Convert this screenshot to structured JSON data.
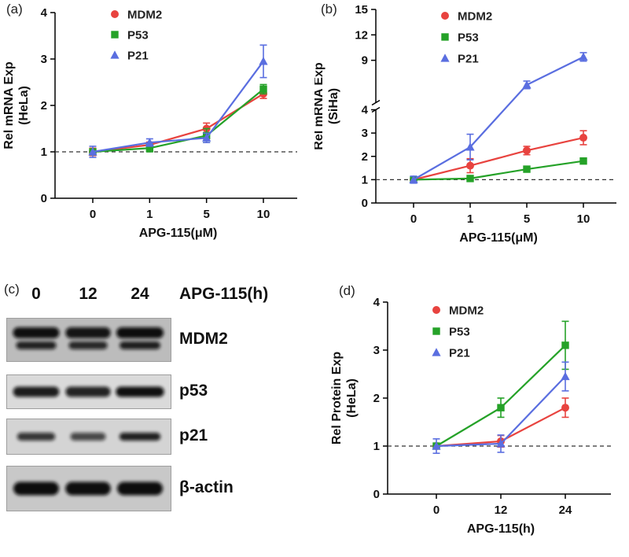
{
  "panels": {
    "a": {
      "label": "(a)"
    },
    "b": {
      "label": "(b)"
    },
    "c": {
      "label": "(c)"
    },
    "d": {
      "label": "(d)"
    }
  },
  "chart_data": [
    {
      "id": "chart-a",
      "type": "line",
      "ylabel": [
        "Rel mRNA Exp",
        "(HeLa)"
      ],
      "xlabel": "APG-115(μM)",
      "categories": [
        "0",
        "1",
        "5",
        "10"
      ],
      "ylim": [
        0,
        4
      ],
      "yticks": [
        0,
        1,
        2,
        3,
        4
      ],
      "refline": 1,
      "legend_position": "top-left",
      "series": [
        {
          "name": "MDM2",
          "marker": "circle",
          "color": "#e8433f",
          "values": [
            1.0,
            1.15,
            1.5,
            2.25
          ],
          "errors": [
            0.08,
            0.06,
            0.12,
            0.1
          ]
        },
        {
          "name": "P53",
          "marker": "square",
          "color": "#25a228",
          "values": [
            1.0,
            1.08,
            1.35,
            2.35
          ],
          "errors": [
            0.06,
            0.08,
            0.15,
            0.1
          ]
        },
        {
          "name": "P21",
          "marker": "triangle",
          "color": "#5a6ee0",
          "values": [
            1.0,
            1.2,
            1.3,
            2.95
          ],
          "errors": [
            0.12,
            0.08,
            0.1,
            0.35
          ]
        }
      ]
    },
    {
      "id": "chart-b",
      "type": "line",
      "ylabel": [
        "Rel mRNA Exp",
        "(SiHa)"
      ],
      "xlabel": "APG-115(μM)",
      "categories": [
        "0",
        "1",
        "5",
        "10"
      ],
      "ylim": [
        0,
        15
      ],
      "axis_break": {
        "value": 4,
        "ymax": 15,
        "lower_ticks": [
          0,
          1,
          2,
          3,
          4
        ],
        "upper_ticks": [
          9,
          12,
          15
        ]
      },
      "refline": 1,
      "legend_position": "top-left",
      "series": [
        {
          "name": "MDM2",
          "marker": "circle",
          "color": "#e8433f",
          "values": [
            1.0,
            1.6,
            2.25,
            2.8
          ],
          "errors": [
            0.12,
            0.3,
            0.18,
            0.3
          ]
        },
        {
          "name": "P53",
          "marker": "square",
          "color": "#25a228",
          "values": [
            1.0,
            1.05,
            1.45,
            1.8
          ],
          "errors": [
            0.08,
            0.12,
            0.12,
            0.12
          ]
        },
        {
          "name": "P21",
          "marker": "triangle",
          "color": "#5a6ee0",
          "values": [
            1.0,
            2.4,
            6.1,
            9.4
          ],
          "errors": [
            0.15,
            0.55,
            0.45,
            0.5
          ]
        }
      ]
    },
    {
      "id": "chart-d",
      "type": "line",
      "ylabel": [
        "Rel Protein Exp",
        "(HeLa)"
      ],
      "xlabel": "APG-115(h)",
      "categories": [
        "0",
        "12",
        "24"
      ],
      "ylim": [
        0,
        4
      ],
      "yticks": [
        0,
        1,
        2,
        3,
        4
      ],
      "refline": 1,
      "legend_position": "top-left",
      "series": [
        {
          "name": "MDM2",
          "marker": "circle",
          "color": "#e8433f",
          "values": [
            1.0,
            1.1,
            1.8
          ],
          "errors": [
            0.05,
            0.12,
            0.2
          ]
        },
        {
          "name": "P53",
          "marker": "square",
          "color": "#25a228",
          "values": [
            1.0,
            1.8,
            3.1
          ],
          "errors": [
            0.05,
            0.2,
            0.5
          ]
        },
        {
          "name": "P21",
          "marker": "triangle",
          "color": "#5a6ee0",
          "values": [
            1.0,
            1.05,
            2.45
          ],
          "errors": [
            0.15,
            0.18,
            0.3
          ]
        }
      ]
    }
  ],
  "blot": {
    "lane_labels": [
      "0",
      "12",
      "24"
    ],
    "treatment_label": "APG-115(h)",
    "rows": [
      {
        "label": "MDM2",
        "bg": "#bcbcbc",
        "doublet": true,
        "intensities": [
          0.95,
          0.85,
          1.0
        ]
      },
      {
        "label": "p53",
        "bg": "#dadada",
        "doublet": false,
        "intensities": [
          0.85,
          0.78,
          0.97
        ]
      },
      {
        "label": "p21",
        "bg": "#d4d4d4",
        "doublet": false,
        "intensities": [
          0.72,
          0.55,
          0.92
        ]
      },
      {
        "label": "β-actin",
        "bg": "#c8c8c8",
        "doublet": false,
        "intensities": [
          1.0,
          0.96,
          1.0
        ]
      }
    ]
  }
}
